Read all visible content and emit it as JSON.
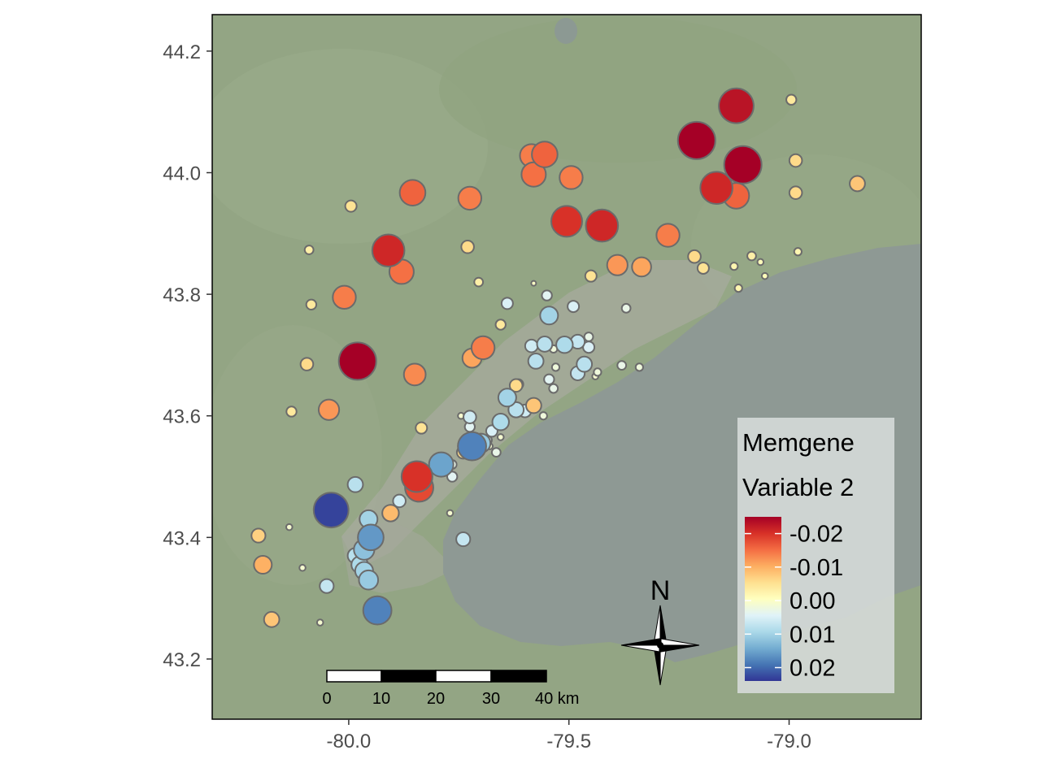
{
  "chart_data": {
    "type": "scatter",
    "title": "",
    "xlabel": "",
    "ylabel": "",
    "xlim": [
      -80.31,
      -78.7
    ],
    "ylim": [
      43.101,
      44.26
    ],
    "x_ticks": [
      "-80.0",
      "-79.5",
      "-79.0"
    ],
    "x_tick_values": [
      -80.0,
      -79.5,
      -79.0
    ],
    "y_ticks": [
      "43.2",
      "43.4",
      "43.6",
      "43.8",
      "44.0",
      "44.2"
    ],
    "y_tick_values": [
      43.2,
      43.4,
      43.6,
      43.8,
      44.0,
      44.2
    ],
    "legend": {
      "title_line1": "Memgene",
      "title_line2": "Variable 2",
      "position": "bottom-right",
      "labels": [
        "-0.02",
        "-0.01",
        "0.00",
        "0.01",
        "0.02"
      ],
      "label_values": [
        -0.02,
        -0.01,
        0.0,
        0.01,
        0.02
      ],
      "range": [
        -0.025,
        0.024
      ],
      "colors_low_to_high": [
        "#a50026",
        "#d73027",
        "#f46d43",
        "#fdae61",
        "#fee090",
        "#ffffbf",
        "#e0f3f8",
        "#abd9e9",
        "#74add1",
        "#4575b4",
        "#313695"
      ]
    },
    "scale_bar": {
      "labels": [
        "0",
        "10",
        "20",
        "30",
        "40 km"
      ]
    },
    "north_arrow": {
      "label": "N"
    },
    "points": [
      {
        "lon": -79.12,
        "lat": 44.11,
        "value": -0.023
      },
      {
        "lon": -78.995,
        "lat": 44.12,
        "value": -0.004
      },
      {
        "lon": -79.21,
        "lat": 44.053,
        "value": -0.025
      },
      {
        "lon": -79.105,
        "lat": 44.013,
        "value": -0.025
      },
      {
        "lon": -79.165,
        "lat": 43.975,
        "value": -0.021
      },
      {
        "lon": -79.12,
        "lat": 43.962,
        "value": -0.016
      },
      {
        "lon": -78.985,
        "lat": 44.02,
        "value": -0.006
      },
      {
        "lon": -78.985,
        "lat": 43.967,
        "value": -0.006
      },
      {
        "lon": -78.845,
        "lat": 43.982,
        "value": -0.008
      },
      {
        "lon": -79.555,
        "lat": 44.03,
        "value": -0.016
      },
      {
        "lon": -79.585,
        "lat": 44.028,
        "value": -0.014
      },
      {
        "lon": -79.58,
        "lat": 43.997,
        "value": -0.015
      },
      {
        "lon": -79.495,
        "lat": 43.992,
        "value": -0.014
      },
      {
        "lon": -79.855,
        "lat": 43.967,
        "value": -0.016
      },
      {
        "lon": -79.725,
        "lat": 43.958,
        "value": -0.014
      },
      {
        "lon": -79.995,
        "lat": 43.945,
        "value": -0.005
      },
      {
        "lon": -79.505,
        "lat": 43.92,
        "value": -0.02
      },
      {
        "lon": -79.425,
        "lat": 43.913,
        "value": -0.021
      },
      {
        "lon": -79.275,
        "lat": 43.897,
        "value": -0.014
      },
      {
        "lon": -79.73,
        "lat": 43.878,
        "value": -0.006
      },
      {
        "lon": -79.91,
        "lat": 43.872,
        "value": -0.021
      },
      {
        "lon": -80.09,
        "lat": 43.873,
        "value": -0.003
      },
      {
        "lon": -79.88,
        "lat": 43.837,
        "value": -0.015
      },
      {
        "lon": -79.39,
        "lat": 43.848,
        "value": -0.012
      },
      {
        "lon": -79.335,
        "lat": 43.845,
        "value": -0.011
      },
      {
        "lon": -79.215,
        "lat": 43.862,
        "value": -0.006
      },
      {
        "lon": -79.195,
        "lat": 43.843,
        "value": -0.005
      },
      {
        "lon": -79.45,
        "lat": 43.83,
        "value": -0.005
      },
      {
        "lon": -79.085,
        "lat": 43.863,
        "value": -0.003
      },
      {
        "lon": -78.98,
        "lat": 43.87,
        "value": -0.002
      },
      {
        "lon": -79.125,
        "lat": 43.846,
        "value": -0.002
      },
      {
        "lon": -79.065,
        "lat": 43.853,
        "value": -0.001
      },
      {
        "lon": -79.055,
        "lat": 43.83,
        "value": -0.001
      },
      {
        "lon": -79.115,
        "lat": 43.81,
        "value": -0.002
      },
      {
        "lon": -79.705,
        "lat": 43.82,
        "value": -0.003
      },
      {
        "lon": -80.01,
        "lat": 43.795,
        "value": -0.014
      },
      {
        "lon": -80.085,
        "lat": 43.783,
        "value": -0.004
      },
      {
        "lon": -79.64,
        "lat": 43.785,
        "value": 0.005
      },
      {
        "lon": -79.58,
        "lat": 43.818,
        "value": 0.0
      },
      {
        "lon": -79.55,
        "lat": 43.798,
        "value": 0.004
      },
      {
        "lon": -79.545,
        "lat": 43.765,
        "value": 0.01
      },
      {
        "lon": -79.49,
        "lat": 43.78,
        "value": 0.005
      },
      {
        "lon": -79.37,
        "lat": 43.777,
        "value": 0.003
      },
      {
        "lon": -79.655,
        "lat": 43.75,
        "value": -0.004
      },
      {
        "lon": -79.695,
        "lat": 43.712,
        "value": -0.014
      },
      {
        "lon": -79.72,
        "lat": 43.695,
        "value": -0.011
      },
      {
        "lon": -79.585,
        "lat": 43.715,
        "value": 0.006
      },
      {
        "lon": -79.51,
        "lat": 43.717,
        "value": 0.009
      },
      {
        "lon": -79.48,
        "lat": 43.722,
        "value": 0.007
      },
      {
        "lon": -79.455,
        "lat": 43.713,
        "value": 0.005
      },
      {
        "lon": -79.455,
        "lat": 43.73,
        "value": 0.003
      },
      {
        "lon": -79.555,
        "lat": 43.718,
        "value": 0.008
      },
      {
        "lon": -79.535,
        "lat": 43.71,
        "value": 0.002
      },
      {
        "lon": -79.575,
        "lat": 43.69,
        "value": 0.008
      },
      {
        "lon": -79.465,
        "lat": 43.685,
        "value": 0.008
      },
      {
        "lon": -79.48,
        "lat": 43.67,
        "value": 0.007
      },
      {
        "lon": -79.98,
        "lat": 43.69,
        "value": -0.025
      },
      {
        "lon": -80.095,
        "lat": 43.685,
        "value": -0.006
      },
      {
        "lon": -79.85,
        "lat": 43.668,
        "value": -0.013
      },
      {
        "lon": -79.545,
        "lat": 43.66,
        "value": 0.004
      },
      {
        "lon": -79.535,
        "lat": 43.645,
        "value": 0.003
      },
      {
        "lon": -79.53,
        "lat": 43.68,
        "value": 0.002
      },
      {
        "lon": -79.44,
        "lat": 43.665,
        "value": 0.001
      },
      {
        "lon": -79.435,
        "lat": 43.672,
        "value": 0.002
      },
      {
        "lon": -79.38,
        "lat": 43.683,
        "value": 0.003
      },
      {
        "lon": -79.34,
        "lat": 43.68,
        "value": 0.002
      },
      {
        "lon": -79.62,
        "lat": 43.65,
        "value": -0.006
      },
      {
        "lon": -79.64,
        "lat": 43.63,
        "value": 0.01
      },
      {
        "lon": -79.615,
        "lat": 43.652,
        "value": -0.004
      },
      {
        "lon": -79.58,
        "lat": 43.617,
        "value": -0.008
      },
      {
        "lon": -79.6,
        "lat": 43.608,
        "value": 0.006
      },
      {
        "lon": -79.558,
        "lat": 43.6,
        "value": 0.002
      },
      {
        "lon": -79.62,
        "lat": 43.61,
        "value": 0.008
      },
      {
        "lon": -79.655,
        "lat": 43.59,
        "value": 0.009
      },
      {
        "lon": -79.725,
        "lat": 43.598,
        "value": 0.006
      },
      {
        "lon": -79.745,
        "lat": 43.6,
        "value": 0.001
      },
      {
        "lon": -80.13,
        "lat": 43.607,
        "value": -0.004
      },
      {
        "lon": -80.045,
        "lat": 43.61,
        "value": -0.012
      },
      {
        "lon": -79.835,
        "lat": 43.58,
        "value": -0.005
      },
      {
        "lon": -79.725,
        "lat": 43.582,
        "value": 0.004
      },
      {
        "lon": -79.675,
        "lat": 43.575,
        "value": 0.005
      },
      {
        "lon": -79.7,
        "lat": 43.555,
        "value": 0.011
      },
      {
        "lon": -79.72,
        "lat": 43.55,
        "value": 0.018
      },
      {
        "lon": -79.74,
        "lat": 43.54,
        "value": -0.006
      },
      {
        "lon": -79.685,
        "lat": 43.56,
        "value": 0.003
      },
      {
        "lon": -79.68,
        "lat": 43.55,
        "value": 0.001
      },
      {
        "lon": -79.665,
        "lat": 43.54,
        "value": 0.003
      },
      {
        "lon": -79.655,
        "lat": 43.565,
        "value": 0.001
      },
      {
        "lon": -79.79,
        "lat": 43.52,
        "value": 0.015
      },
      {
        "lon": -79.765,
        "lat": 43.52,
        "value": 0.003
      },
      {
        "lon": -79.765,
        "lat": 43.5,
        "value": 0.004
      },
      {
        "lon": -79.845,
        "lat": 43.5,
        "value": -0.02
      },
      {
        "lon": -79.84,
        "lat": 43.482,
        "value": -0.018
      },
      {
        "lon": -79.985,
        "lat": 43.487,
        "value": 0.008
      },
      {
        "lon": -79.885,
        "lat": 43.46,
        "value": 0.006
      },
      {
        "lon": -80.04,
        "lat": 43.445,
        "value": 0.023
      },
      {
        "lon": -79.905,
        "lat": 43.44,
        "value": -0.009
      },
      {
        "lon": -79.77,
        "lat": 43.44,
        "value": 0.001
      },
      {
        "lon": -79.955,
        "lat": 43.43,
        "value": 0.01
      },
      {
        "lon": -79.95,
        "lat": 43.4,
        "value": 0.016
      },
      {
        "lon": -79.74,
        "lat": 43.397,
        "value": 0.007
      },
      {
        "lon": -80.135,
        "lat": 43.417,
        "value": 0.001
      },
      {
        "lon": -80.205,
        "lat": 43.403,
        "value": -0.007
      },
      {
        "lon": -79.965,
        "lat": 43.38,
        "value": 0.012
      },
      {
        "lon": -79.985,
        "lat": 43.37,
        "value": 0.008
      },
      {
        "lon": -80.195,
        "lat": 43.355,
        "value": -0.01
      },
      {
        "lon": -80.105,
        "lat": 43.35,
        "value": 0.001
      },
      {
        "lon": -79.965,
        "lat": 43.345,
        "value": 0.01
      },
      {
        "lon": -79.955,
        "lat": 43.33,
        "value": 0.011
      },
      {
        "lon": -79.975,
        "lat": 43.355,
        "value": 0.009
      },
      {
        "lon": -80.05,
        "lat": 43.32,
        "value": 0.007
      },
      {
        "lon": -79.935,
        "lat": 43.28,
        "value": 0.018
      },
      {
        "lon": -80.175,
        "lat": 43.265,
        "value": -0.008
      },
      {
        "lon": -80.065,
        "lat": 43.26,
        "value": 0.001
      }
    ]
  }
}
